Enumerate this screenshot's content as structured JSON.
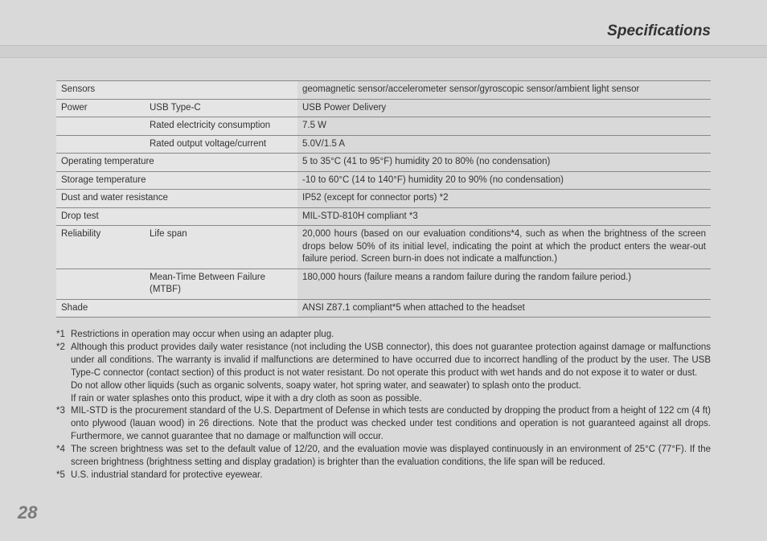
{
  "title": "Specifications",
  "page_number": "28",
  "rows": [
    {
      "c1": "Sensors",
      "c2": "",
      "span12": true,
      "v": "geomagnetic sensor/accelerometer sensor/gyroscopic sensor/ambient light sensor"
    },
    {
      "c1": "Power",
      "c2": "USB Type-C",
      "v": "USB Power Delivery"
    },
    {
      "c1": "",
      "c2": "Rated electricity consumption",
      "v": "7.5 W"
    },
    {
      "c1": "",
      "c2": "Rated output voltage/current",
      "v": "5.0V/1.5 A"
    },
    {
      "c1": "Operating temperature",
      "span12": true,
      "v": "5 to 35°C (41 to 95°F) humidity 20 to 80% (no condensation)"
    },
    {
      "c1": "Storage temperature",
      "span12": true,
      "v": "-10 to 60°C (14 to 140°F) humidity 20 to 90% (no condensation)"
    },
    {
      "c1": "Dust and water resistance",
      "span12": true,
      "v": "IP52 (except for connector ports) *2"
    },
    {
      "c1": "Drop test",
      "span12": true,
      "v": "MIL-STD-810H compliant *3"
    },
    {
      "c1": "Reliability",
      "c2": "Life span",
      "justify": true,
      "v": "20,000 hours (based on our evaluation conditions*4, such as when the brightness of the screen drops below 50% of its initial level, indicating the point at which the product enters the wear-out failure period. Screen burn-in does not indicate a malfunction.)"
    },
    {
      "c1": "",
      "c2": "Mean-Time Between Failure (MTBF)",
      "v": "180,000 hours (failure means a random failure during the random failure period.)"
    },
    {
      "c1": "Shade",
      "span12": true,
      "v": "ANSI Z87.1 compliant*5 when attached to the headset"
    }
  ],
  "notes": [
    {
      "m": "*1",
      "t": "Restrictions in operation may occur when using an adapter plug.",
      "align": "left"
    },
    {
      "m": "*2",
      "t": "Although this product provides daily water resistance (not including the USB connector), this does not guarantee protection against damage or malfunctions under all conditions. The warranty is invalid if malfunctions are determined to have occurred due to incorrect handling of the product by the user. The USB Type-C connector (contact section) of this product is not water resistant. Do not operate this product with wet hands and do not expose it to water or dust.",
      "align": "justify"
    },
    {
      "m": "",
      "t": "Do not allow other liquids (such as organic solvents, soapy water, hot spring water, and seawater) to splash onto the product.",
      "align": "left"
    },
    {
      "m": "",
      "t": "If rain or water splashes onto this product, wipe it with a dry cloth as soon as possible.",
      "align": "left"
    },
    {
      "m": "*3",
      "t": "MIL-STD is the procurement standard of the U.S. Department of Defense in which tests are conducted by dropping the product from a height of 122 cm (4 ft) onto plywood (lauan wood) in 26 directions. Note that the product was checked under test conditions and operation is not guaranteed against all drops. Furthermore, we cannot guarantee that no damage or malfunction will occur.",
      "align": "justify"
    },
    {
      "m": "*4",
      "t": "The screen brightness was set to the default value of 12/20, and the evaluation movie was displayed continuously in an environment of 25°C (77°F). If the screen brightness (brightness setting and display gradation) is brighter than the evaluation conditions, the life span will be reduced.",
      "align": "justify"
    },
    {
      "m": "*5",
      "t": "U.S. industrial standard for protective eyewear.",
      "align": "left"
    }
  ]
}
